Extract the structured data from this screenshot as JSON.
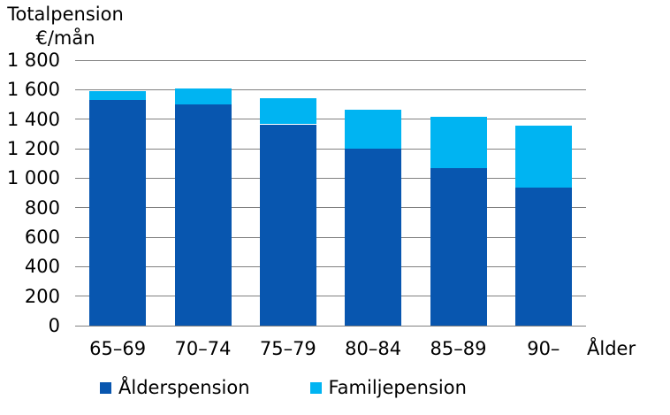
{
  "title": {
    "line1": "Totalpension",
    "line2": "€/mån"
  },
  "x_axis_title": "Ålder",
  "legend": {
    "items": [
      {
        "label": "Ålderspension",
        "color": "#0856af"
      },
      {
        "label": "Familjepension",
        "color": "#00b4f2"
      }
    ]
  },
  "colors": {
    "dark_blue": "#0856af",
    "light_blue": "#00b4f2",
    "gridline": "#808080",
    "text": "#000000",
    "background": "#ffffff"
  },
  "chart_data": {
    "type": "bar",
    "stacked": true,
    "title": "Totalpension €/mån",
    "xlabel": "Ålder",
    "ylabel": "€/mån",
    "categories": [
      "65–69",
      "70–74",
      "75–79",
      "80–84",
      "85–89",
      "90–"
    ],
    "series": [
      {
        "name": "Ålderspension",
        "color": "#0856af",
        "values": [
          1530,
          1500,
          1365,
          1200,
          1070,
          935
        ]
      },
      {
        "name": "Familjepension",
        "color": "#00b4f2",
        "values": [
          60,
          110,
          175,
          265,
          345,
          420
        ]
      }
    ],
    "totals": [
      1590,
      1610,
      1540,
      1465,
      1415,
      1355
    ],
    "ylim": [
      0,
      1800
    ],
    "ytick_step": 200,
    "ytick_values": [
      0,
      200,
      400,
      600,
      800,
      1000,
      1200,
      1400,
      1600,
      1800
    ],
    "ytick_labels": [
      "0",
      "200",
      "400",
      "600",
      "800",
      "1 000",
      "1 200",
      "1 400",
      "1 600",
      "1 800"
    ],
    "grid": true,
    "legend_position": "bottom"
  }
}
